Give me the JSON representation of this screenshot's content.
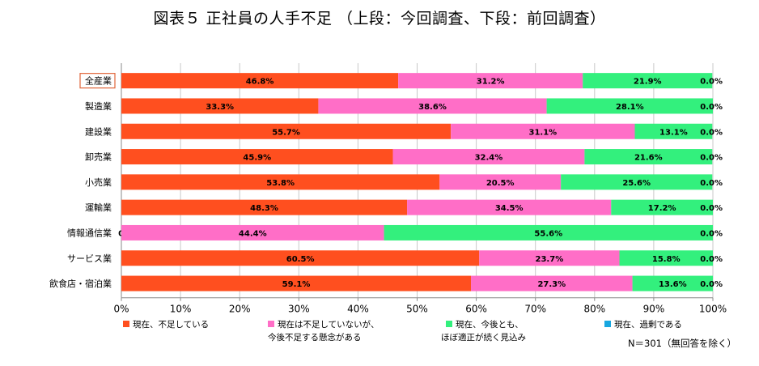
{
  "title": "図表５  正社員の人手不足   （上段：今回調査、下段：前回調査）",
  "note": "N＝301（無回答を除く）",
  "colors": {
    "shortage": "#FF4F1F",
    "concern": "#FF6EC7",
    "adequate": "#33F07D",
    "excess": "#17A7E0",
    "highlight_border": "#E0663B",
    "grid": "#C8C8C8"
  },
  "legend": [
    {
      "lines": [
        "現在、不足している"
      ],
      "color": "#FF4F1F"
    },
    {
      "lines": [
        "現在は不足していないが、",
        "今後不足する懸念がある"
      ],
      "color": "#FF6EC7"
    },
    {
      "lines": [
        "現在、今後とも、",
        "ほぼ適正が続く見込み"
      ],
      "color": "#33F07D"
    },
    {
      "lines": [
        "現在、過剰である"
      ],
      "color": "#17A7E0"
    }
  ],
  "chart_data": {
    "type": "bar",
    "orientation": "horizontal",
    "stacked": true,
    "title": "図表５  正社員の人手不足   （上段：今回調査、下段：前回調査）",
    "categories": [
      "全産業",
      "製造業",
      "建設業",
      "卸売業",
      "小売業",
      "運輸業",
      "情報通信業",
      "サービス業",
      "飲食店・宿泊業"
    ],
    "highlighted_category": "全産業",
    "series": [
      {
        "name": "現在、不足している",
        "color": "#FF4F1F",
        "values": [
          46.8,
          33.3,
          55.7,
          45.9,
          53.8,
          48.3,
          0.0,
          60.5,
          59.1
        ]
      },
      {
        "name": "現在は不足していないが、今後不足する懸念がある",
        "color": "#FF6EC7",
        "values": [
          31.2,
          38.6,
          31.1,
          32.4,
          20.5,
          34.5,
          44.4,
          23.7,
          27.3
        ]
      },
      {
        "name": "現在、今後とも、ほぼ適正が続く見込み",
        "color": "#33F07D",
        "values": [
          21.9,
          28.1,
          13.1,
          21.6,
          25.6,
          17.2,
          55.6,
          15.8,
          13.6
        ]
      },
      {
        "name": "現在、過剰である",
        "color": "#17A7E0",
        "values": [
          0.0,
          0.0,
          0.0,
          0.0,
          0.0,
          0.0,
          0.0,
          0.0,
          0.0
        ]
      }
    ],
    "xlim": [
      0,
      100
    ],
    "xticks": [
      "0%",
      "10%",
      "20%",
      "30%",
      "40%",
      "50%",
      "60%",
      "70%",
      "80%",
      "90%",
      "100%"
    ],
    "grid": "vertical",
    "legend_position": "bottom"
  }
}
